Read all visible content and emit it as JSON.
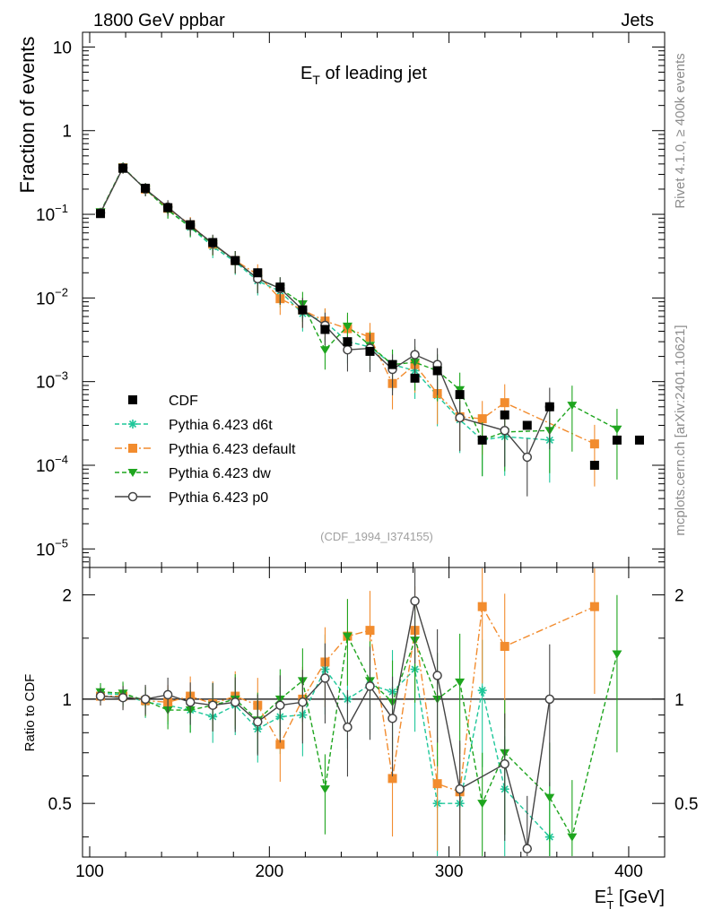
{
  "header": {
    "left_title": "1800 GeV ppbar",
    "right_title": "Jets",
    "plot_title_main": "E",
    "plot_title_sub": "T",
    "plot_title_rest": " of leading jet",
    "side_label_top": "Rivet 4.1.0, ≥ 400k events",
    "side_label_bottom": "mcplots.cern.ch [arXiv:2401.10621]",
    "analysis_id": "(CDF_1994_I374155)"
  },
  "axes": {
    "main_ylabel": "Fraction of events",
    "ratio_ylabel": "Ratio to CDF",
    "xlabel_main": "E",
    "xlabel_sup": "1",
    "xlabel_sub": "T",
    "xlabel_unit": " [GeV]",
    "x_ticks": [
      "100",
      "200",
      "300",
      "400"
    ],
    "y_ticks_main": [
      {
        "label": "10",
        "exp": "",
        "value": 10
      },
      {
        "label": "1",
        "exp": "",
        "value": 1
      },
      {
        "label": "10",
        "exp": "−1",
        "value": 0.1
      },
      {
        "label": "10",
        "exp": "−2",
        "value": 0.01
      },
      {
        "label": "10",
        "exp": "−3",
        "value": 0.001
      },
      {
        "label": "10",
        "exp": "−4",
        "value": 0.0001
      },
      {
        "label": "10",
        "exp": "−5",
        "value": 1e-05
      }
    ],
    "y_ticks_ratio": [
      "0.5",
      "1",
      "2"
    ]
  },
  "legend": [
    {
      "name": "CDF",
      "color": "#000000",
      "marker": "square",
      "dash": ""
    },
    {
      "name": "Pythia 6.423 d6t",
      "color": "#1fc79a",
      "marker": "star",
      "dash": "5,3"
    },
    {
      "name": "Pythia 6.423 default",
      "color": "#f28c2e",
      "marker": "square",
      "dash": "8,3,2,3"
    },
    {
      "name": "Pythia 6.423 dw",
      "color": "#1ea51e",
      "marker": "triangle",
      "dash": "5,3"
    },
    {
      "name": "Pythia 6.423 p0",
      "color": "#444444",
      "marker": "circle",
      "dash": ""
    }
  ],
  "chart_data": {
    "type": "line",
    "title": "E_T of leading jet",
    "xlabel": "E_T^1 [GeV]",
    "ylabel": "Fraction of events",
    "xlim": [
      96,
      420
    ],
    "ylim": [
      6e-06,
      15
    ],
    "yscale": "log",
    "ratio_ylim": [
      0.35,
      2.4
    ],
    "reference": {
      "name": "CDF",
      "x": [
        106,
        118.5,
        131,
        143.5,
        156,
        168.5,
        181,
        193.5,
        206,
        218.5,
        231,
        243.5,
        256,
        268.5,
        281,
        293.5,
        306,
        318.5,
        331,
        343.5,
        356,
        381,
        393.5,
        406
      ],
      "y": [
        0.102,
        0.355,
        0.205,
        0.12,
        0.075,
        0.046,
        0.028,
        0.02,
        0.0135,
        0.0072,
        0.0042,
        0.003,
        0.0023,
        0.0016,
        0.0011,
        0.00135,
        0.0007,
        0.0002,
        0.0004,
        0.0003,
        0.0005,
        0.0001,
        0.0002,
        0.0002
      ]
    },
    "series": [
      {
        "name": "Pythia 6.423 d6t",
        "x": [
          106,
          118.5,
          131,
          143.5,
          156,
          168.5,
          181,
          193.5,
          206,
          218.5,
          231,
          243.5,
          256,
          268.5,
          281,
          293.5,
          306,
          318.5,
          331,
          356
        ],
        "y": [
          0.105,
          0.36,
          0.2,
          0.115,
          0.07,
          0.041,
          0.027,
          0.016,
          0.012,
          0.0065,
          0.0052,
          0.003,
          0.0026,
          0.0016,
          0.00135,
          0.00068,
          0.00035,
          0.0002,
          0.00022,
          0.0002
        ],
        "ratio": [
          1.04,
          1.03,
          0.98,
          0.96,
          0.93,
          0.89,
          0.96,
          0.82,
          0.89,
          0.9,
          1.22,
          1.0,
          1.1,
          1.05,
          1.22,
          0.5,
          0.5,
          1.06,
          0.55,
          0.4
        ]
      },
      {
        "name": "Pythia 6.423 default",
        "x": [
          106,
          118.5,
          131,
          143.5,
          156,
          168.5,
          181,
          193.5,
          206,
          218.5,
          231,
          243.5,
          256,
          268.5,
          281,
          293.5,
          306,
          318.5,
          331,
          381
        ],
        "y": [
          0.104,
          0.36,
          0.2,
          0.118,
          0.075,
          0.044,
          0.028,
          0.019,
          0.0098,
          0.0072,
          0.0053,
          0.0043,
          0.0034,
          0.00095,
          0.0016,
          0.00072,
          0.00038,
          0.00036,
          0.00056,
          0.00018
        ],
        "ratio": [
          1.02,
          1.02,
          0.99,
          0.98,
          1.02,
          0.97,
          1.02,
          0.96,
          0.74,
          1.0,
          1.28,
          1.52,
          1.58,
          0.59,
          1.58,
          0.57,
          0.54,
          1.85,
          1.42,
          1.85
        ]
      },
      {
        "name": "Pythia 6.423 dw",
        "x": [
          106,
          118.5,
          131,
          143.5,
          156,
          168.5,
          181,
          193.5,
          206,
          218.5,
          231,
          243.5,
          256,
          268.5,
          281,
          293.5,
          306,
          318.5,
          331,
          356,
          368.5,
          393.5
        ],
        "y": [
          0.107,
          0.365,
          0.2,
          0.112,
          0.07,
          0.044,
          0.028,
          0.017,
          0.013,
          0.0085,
          0.0024,
          0.0046,
          0.0027,
          0.0016,
          0.0017,
          0.00135,
          0.0008,
          0.0002,
          0.00025,
          0.00026,
          0.00052,
          0.00027
        ],
        "ratio": [
          1.05,
          1.04,
          0.99,
          0.93,
          0.93,
          0.96,
          1.0,
          0.87,
          1.0,
          1.13,
          0.55,
          1.52,
          1.13,
          0.98,
          1.48,
          1.0,
          1.12,
          0.5,
          0.7,
          0.52,
          0.4,
          1.35
        ]
      },
      {
        "name": "Pythia 6.423 p0",
        "x": [
          106,
          118.5,
          131,
          143.5,
          156,
          168.5,
          181,
          193.5,
          206,
          218.5,
          231,
          243.5,
          256,
          268.5,
          281,
          293.5,
          306,
          331,
          343.5,
          356
        ],
        "y": [
          0.104,
          0.36,
          0.2,
          0.122,
          0.073,
          0.045,
          0.028,
          0.017,
          0.013,
          0.0072,
          0.0047,
          0.0024,
          0.0025,
          0.0014,
          0.0021,
          0.0016,
          0.00037,
          0.00026,
          0.000125,
          0.0005
        ],
        "ratio": [
          1.02,
          1.01,
          1.0,
          1.03,
          0.98,
          0.96,
          0.98,
          0.86,
          0.96,
          0.98,
          1.15,
          0.83,
          1.09,
          0.88,
          1.92,
          1.17,
          0.55,
          0.65,
          0.37,
          1.0
        ]
      }
    ]
  }
}
